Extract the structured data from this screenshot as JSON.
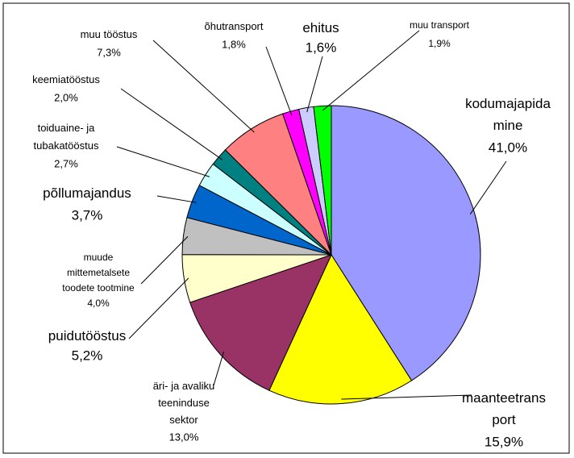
{
  "chart_data": {
    "type": "pie",
    "categories": [
      "kodumajapida\nmine",
      "maanteetrans\nport",
      "äri- ja avaliku\nteeninduse\nsektor",
      "puidutööstus",
      "muude\nmittemetalsete\ntoodete tootmine",
      "põllumajandus",
      "toiduaine- ja\ntubakatööstus",
      "keemiatööstus",
      "muu tööstus",
      "õhutransport",
      "ehitus",
      "muu transport"
    ],
    "values": [
      41.0,
      15.9,
      13.0,
      5.2,
      4.0,
      3.7,
      2.7,
      2.0,
      7.3,
      1.8,
      1.6,
      1.9
    ],
    "value_labels": [
      "41,0%",
      "15,9%",
      "13,0%",
      "5,2%",
      "4,0%",
      "3,7%",
      "2,7%",
      "2,0%",
      "7,3%",
      "1,8%",
      "1,6%",
      "1,9%"
    ],
    "colors": [
      "#9999ff",
      "#ffff00",
      "#993366",
      "#ffffcc",
      "#c0c0c0",
      "#0066cc",
      "#ccffff",
      "#008080",
      "#ff8080",
      "#ff00ff",
      "#ccccff",
      "#00ff00"
    ]
  }
}
